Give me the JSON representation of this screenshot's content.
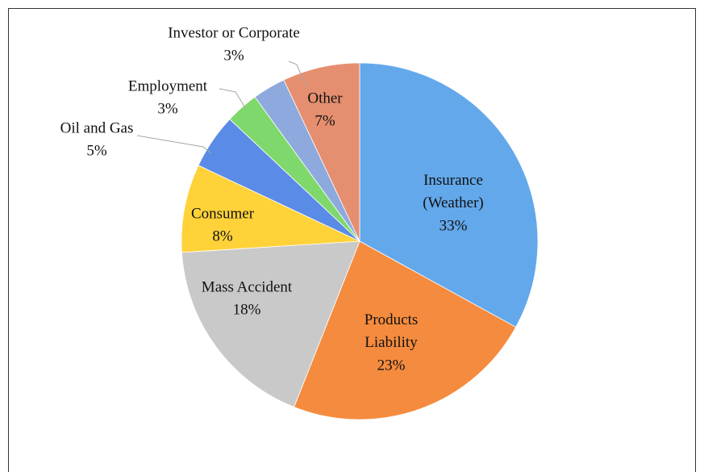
{
  "chart_data": {
    "type": "pie",
    "categories": [
      "Insurance (Weather)",
      "Products Liability",
      "Mass Accident",
      "Consumer",
      "Oil and Gas",
      "Employment",
      "Investor or Corporate",
      "Other"
    ],
    "values": [
      33,
      23,
      18,
      8,
      5,
      3,
      3,
      7
    ],
    "value_labels": [
      "33%",
      "23%",
      "18%",
      "8%",
      "5%",
      "3%",
      "3%",
      "7%"
    ],
    "colors": [
      "#63a8ea",
      "#f58b3e",
      "#c9c9c9",
      "#ffd23a",
      "#5a8be6",
      "#7fd86c",
      "#8da9dd",
      "#e58f70"
    ]
  }
}
